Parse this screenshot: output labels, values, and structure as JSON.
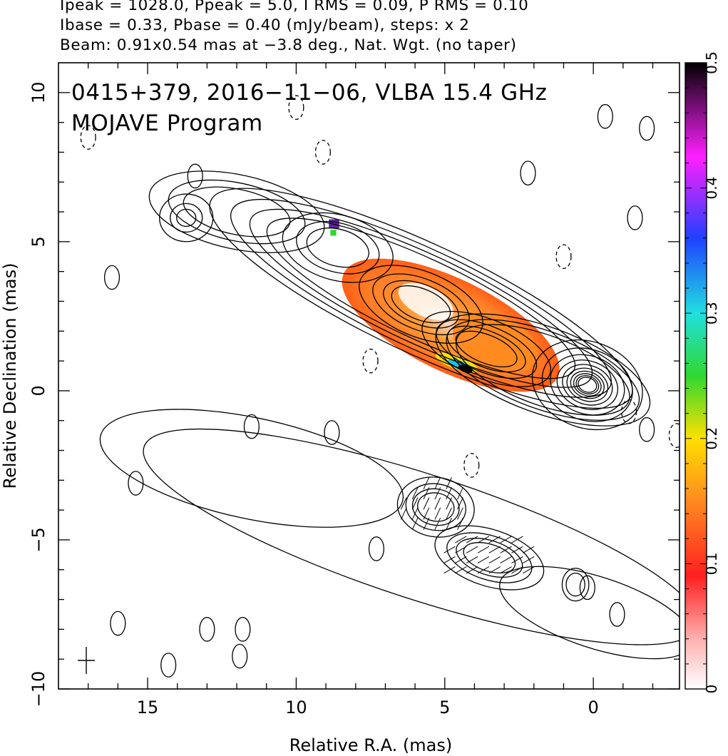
{
  "header": {
    "line1": "Ipeak = 1028.0, Ppeak = 5.0, I RMS = 0.09, P RMS = 0.10",
    "line2": "Ibase = 0.33, Pbase = 0.40 (mJy/beam), steps: x 2",
    "line3": "Beam: 0.91x0.54 mas at −3.8 deg., Nat. Wgt. (no taper)"
  },
  "chart_data": {
    "type": "heatmap",
    "title": "0415+379, 2016−11−06, VLBA 15.4 GHz",
    "subtitle": "MOJAVE Program",
    "xlabel": "Relative R.A. (mas)",
    "ylabel": "Relative Declination (mas)",
    "xlim": [
      18.0,
      -2.9
    ],
    "ylim": [
      -10.0,
      11.0
    ],
    "x_ticks": [
      15,
      10,
      5,
      0
    ],
    "x_tick_labels": [
      "15",
      "10",
      "5",
      "0"
    ],
    "y_ticks": [
      10,
      5,
      0,
      -5,
      -10
    ],
    "y_tick_labels": [
      "10",
      "5",
      "0",
      "−5",
      "−10"
    ],
    "colorbar": {
      "min": 0,
      "max": 0.5,
      "ticks": [
        0,
        0.1,
        0.2,
        0.3,
        0.4,
        0.5
      ],
      "tick_labels": [
        "0",
        "0.1",
        "0.2",
        "0.3",
        "0.4",
        "0.5"
      ],
      "colormap": [
        "#ffffff",
        "#ff2020",
        "#ffa020",
        "#ffe000",
        "#20d820",
        "#20e0e0",
        "#2040ff",
        "#ff20ff",
        "#000000"
      ]
    },
    "total_intensity_core": {
      "x": 0.2,
      "y": 0.2
    },
    "total_intensity_jet_knots": [
      {
        "x": 13.7,
        "y": 5.8
      },
      {
        "x": 8.6,
        "y": 4.8
      },
      {
        "x": 5.8,
        "y": 2.9
      },
      {
        "x": 3.6,
        "y": 1.4
      },
      {
        "x": 0.2,
        "y": 0.2
      }
    ],
    "polarized_intensity_knots": [
      {
        "x": 5.3,
        "y": -3.9
      },
      {
        "x": 3.5,
        "y": -5.6
      },
      {
        "x": 0.6,
        "y": -6.5
      }
    ],
    "fractional_polarization_regions": [
      {
        "x": 5.8,
        "y": 2.9,
        "value": 0.1
      },
      {
        "x": 3.5,
        "y": 1.6,
        "value": 0.1
      },
      {
        "x": 4.5,
        "y": 0.9,
        "value": 0.35
      }
    ],
    "beam": {
      "major_mas": 0.91,
      "minor_mas": 0.54,
      "pa_deg": -3.8
    },
    "grid": false
  }
}
